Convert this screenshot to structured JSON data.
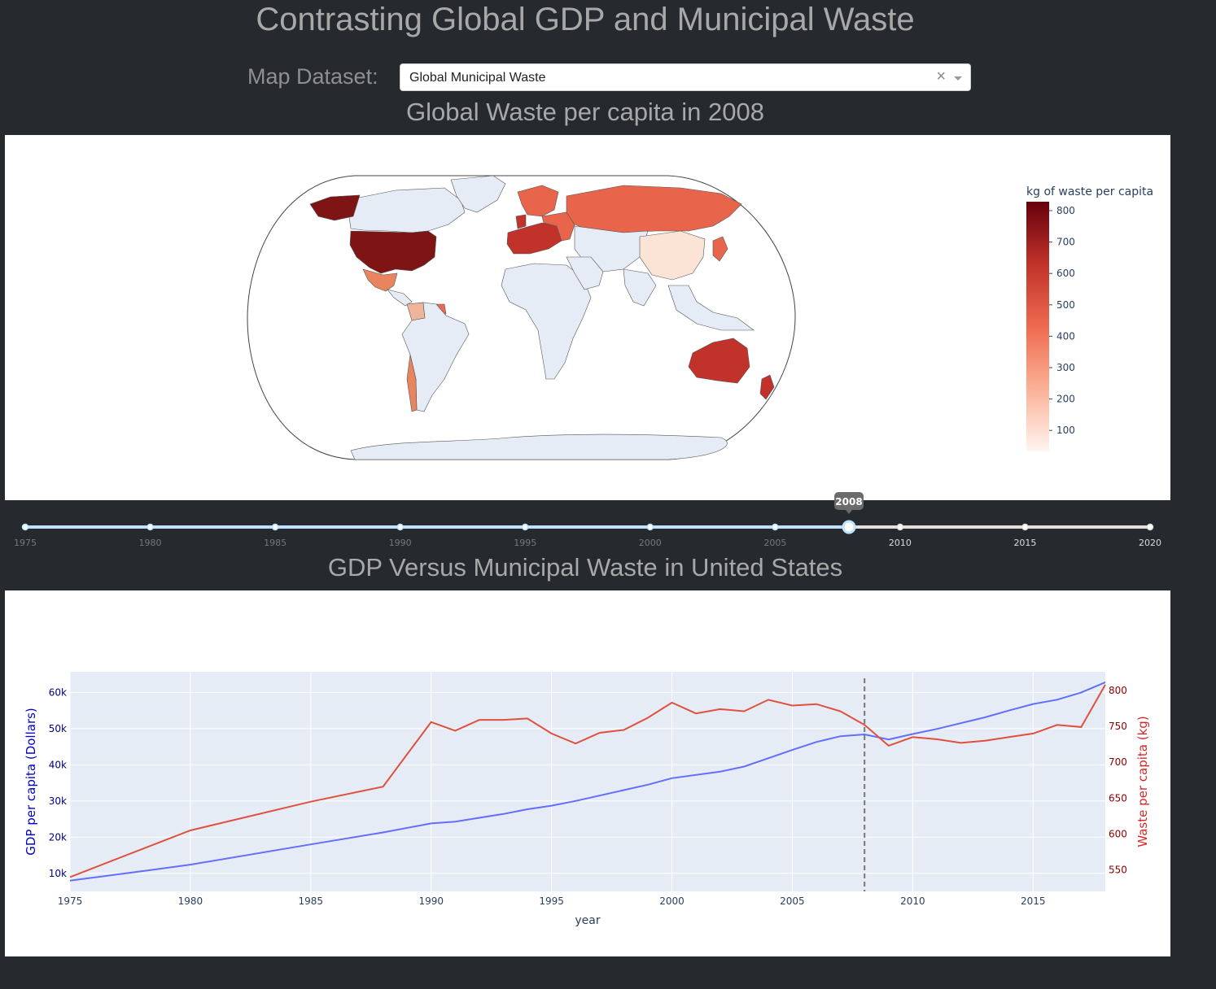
{
  "header": {
    "title": "Contrasting Global GDP and Municipal Waste"
  },
  "dataset": {
    "label": "Map Dataset:",
    "selected": "Global Municipal Waste",
    "clear": "×"
  },
  "map": {
    "title": "Global Waste per capita in 2008",
    "colorbar": {
      "title": "kg of waste per capita",
      "ticks": [
        "800",
        "700",
        "600",
        "500",
        "400",
        "300",
        "200",
        "100"
      ]
    },
    "colors": {
      "ocean": "#ffffff",
      "nodata": "#e5ecf6",
      "very_high": "#7f1414",
      "high": "#c0322a",
      "mid": "#e8654b",
      "low": "#f0a080",
      "very_low": "#fbe3d6"
    }
  },
  "slider": {
    "selected": "2008",
    "selected_value": 2008,
    "min": 1975,
    "max": 2020,
    "ticks": [
      "1975",
      "1980",
      "1985",
      "1990",
      "1995",
      "2000",
      "2005",
      "2010",
      "2015",
      "2020"
    ]
  },
  "chart": {
    "title": "GDP Versus Municipal Waste in United States"
  },
  "chart_data": {
    "type": "line",
    "xlabel": "year",
    "y1label": "GDP per capita (Dollars)",
    "y2label": "Waste per capita (kg)",
    "xlim": [
      1975,
      2018
    ],
    "y1lim": [
      5000,
      65700
    ],
    "y2lim": [
      520,
      826
    ],
    "xticks": [
      "1975",
      "1980",
      "1985",
      "1990",
      "1995",
      "2000",
      "2005",
      "2010",
      "2015"
    ],
    "y1ticks": [
      "10k",
      "20k",
      "30k",
      "40k",
      "50k",
      "60k"
    ],
    "y2ticks": [
      "550",
      "600",
      "650",
      "700",
      "750",
      "800"
    ],
    "marker_year": 2008,
    "series": [
      {
        "color": "#636efa",
        "x": [
          1975,
          1978,
          1980,
          1985,
          1988,
          1990,
          1991,
          1993,
          1994,
          1995,
          1996,
          1999,
          2000,
          2002,
          2003,
          2005,
          2006,
          2007,
          2008,
          2009,
          2010,
          2011,
          2013,
          2014,
          2015,
          2016,
          2017,
          2018
        ],
        "y": [
          8000,
          10600,
          12400,
          18000,
          21300,
          23800,
          24300,
          26400,
          27700,
          28700,
          30000,
          34500,
          36300,
          38100,
          39500,
          44100,
          46300,
          47900,
          48400,
          47000,
          48500,
          49900,
          53100,
          55000,
          56800,
          58000,
          60000,
          62800
        ]
      },
      {
        "color": "#e0503c",
        "x": [
          1975,
          1980,
          1985,
          1988,
          1990,
          1991,
          1992,
          1993,
          1994,
          1995,
          1996,
          1997,
          1998,
          1999,
          2000,
          2001,
          2002,
          2003,
          2004,
          2005,
          2006,
          2007,
          2008,
          2009,
          2010,
          2011,
          2012,
          2013,
          2014,
          2015,
          2016,
          2017,
          2018
        ],
        "y": [
          540,
          605,
          645,
          666,
          756,
          744,
          759,
          759,
          761,
          740,
          726,
          741,
          745,
          762,
          783,
          768,
          774,
          771,
          787,
          779,
          781,
          771,
          752,
          723,
          735,
          732,
          727,
          730,
          735,
          740,
          752,
          749,
          808
        ]
      }
    ]
  }
}
